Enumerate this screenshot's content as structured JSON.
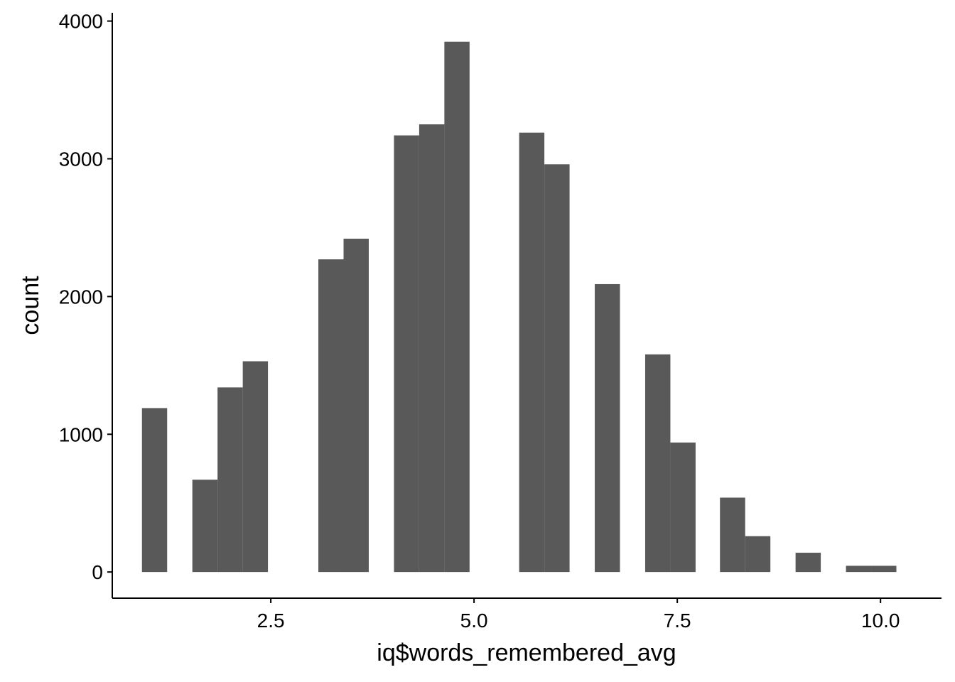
{
  "chart_data": {
    "type": "bar",
    "title": "",
    "xlabel": "iq$words_remembered_avg",
    "ylabel": "count",
    "xlim": [
      0.55,
      10.75
    ],
    "ylim": [
      -190,
      4060
    ],
    "x_ticks": [
      2.5,
      5.0,
      7.5,
      10.0
    ],
    "x_tick_labels": [
      "2.5",
      "5.0",
      "7.5",
      "10.0"
    ],
    "y_ticks": [
      0,
      1000,
      2000,
      3000,
      4000
    ],
    "y_tick_labels": [
      "0",
      "1000",
      "2000",
      "3000",
      "4000"
    ],
    "bin_width": 0.31,
    "bins": [
      {
        "x": 1.07,
        "count": 1190
      },
      {
        "x": 1.69,
        "count": 670
      },
      {
        "x": 2.0,
        "count": 1340
      },
      {
        "x": 2.31,
        "count": 1530
      },
      {
        "x": 3.24,
        "count": 2270
      },
      {
        "x": 3.55,
        "count": 2420
      },
      {
        "x": 4.17,
        "count": 3170
      },
      {
        "x": 4.48,
        "count": 3250
      },
      {
        "x": 4.79,
        "count": 3850
      },
      {
        "x": 5.71,
        "count": 3190
      },
      {
        "x": 6.02,
        "count": 2960
      },
      {
        "x": 6.64,
        "count": 2090
      },
      {
        "x": 7.26,
        "count": 1580
      },
      {
        "x": 7.57,
        "count": 940
      },
      {
        "x": 8.18,
        "count": 540
      },
      {
        "x": 8.49,
        "count": 260
      },
      {
        "x": 9.11,
        "count": 140
      },
      {
        "x": 9.73,
        "count": 45
      },
      {
        "x": 10.04,
        "count": 45
      }
    ],
    "bar_color": "#595959",
    "grid": false,
    "legend": "none"
  }
}
